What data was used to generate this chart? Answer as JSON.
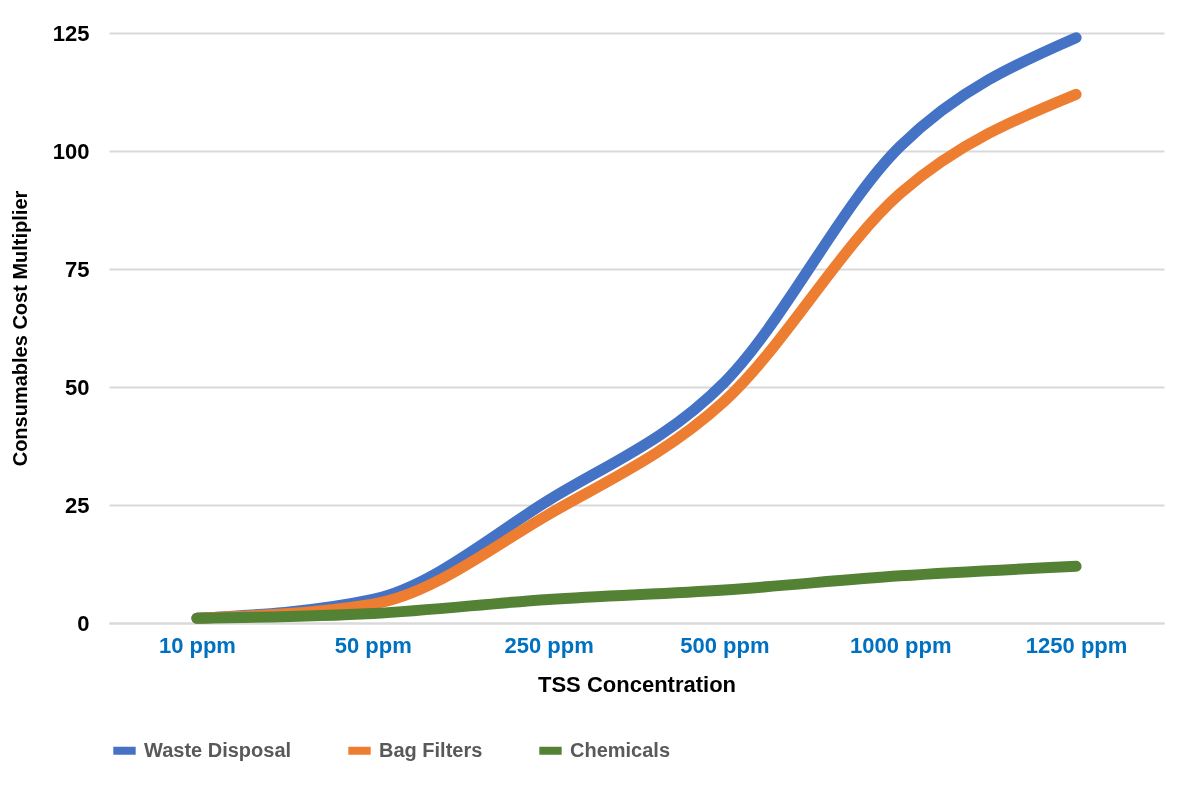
{
  "chart_data": {
    "type": "line",
    "xlabel": "TSS Concentration",
    "ylabel": "Consumables Cost Multiplier",
    "categories": [
      "10 ppm",
      "50 ppm",
      "250 ppm",
      "500 ppm",
      "1000 ppm",
      "1250 ppm"
    ],
    "series": [
      {
        "name": "Waste Disposal",
        "color": "#4472c4",
        "values": [
          1,
          5,
          26,
          51,
          101,
          124
        ]
      },
      {
        "name": "Bag Filters",
        "color": "#ed7d31",
        "values": [
          1,
          4,
          23,
          47,
          91,
          112
        ]
      },
      {
        "name": "Chemicals",
        "color": "#548235",
        "values": [
          1,
          2,
          5,
          7,
          10,
          12
        ]
      }
    ],
    "ylim": [
      0,
      125
    ],
    "yticks": [
      0,
      25,
      50,
      75,
      100,
      125
    ],
    "grid": "y",
    "legend": "bottom"
  }
}
